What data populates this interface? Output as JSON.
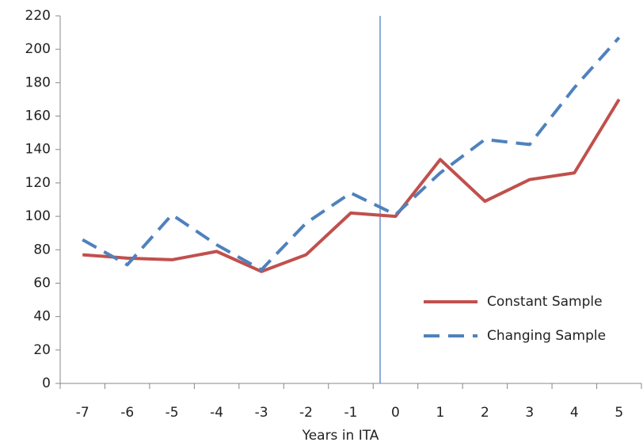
{
  "chart_data": {
    "type": "line",
    "x_label": "Years in ITA",
    "categories": [
      "-7",
      "-6",
      "-5",
      "-4",
      "-3",
      "-2",
      "-1",
      "0",
      "1",
      "2",
      "3",
      "4",
      "5"
    ],
    "series": [
      {
        "name": "Constant Sample",
        "color": "#c0504d",
        "dash": "solid",
        "values": [
          77,
          75,
          74,
          79,
          67,
          77,
          102,
          100,
          134,
          109,
          122,
          126,
          170
        ]
      },
      {
        "name": "Changing Sample",
        "color": "#4f81bd",
        "dash": "dashed",
        "values": [
          86,
          71,
          101,
          83,
          68,
          96,
          114,
          101,
          126,
          146,
          143,
          177,
          207
        ]
      }
    ],
    "ylim": [
      0,
      220
    ],
    "yticks": [
      0,
      20,
      40,
      60,
      80,
      100,
      120,
      140,
      160,
      180,
      200,
      220
    ],
    "grid": false,
    "legend": "lower-right"
  }
}
